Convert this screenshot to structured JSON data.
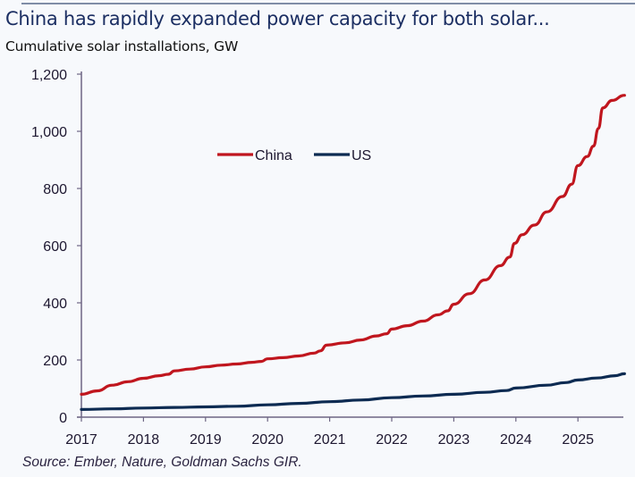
{
  "header": {
    "title": "China has rapidly expanded power capacity for both solar...",
    "subtitle": "Cumulative solar installations, GW"
  },
  "footer": {
    "source": "Source: Ember, Nature, Goldman Sachs GIR."
  },
  "chart_data": {
    "type": "line",
    "title": "China has rapidly expanded power capacity for both solar...",
    "subtitle": "Cumulative solar installations, GW",
    "xlabel": "",
    "ylabel": "Cumulative solar installations, GW",
    "xlim": [
      2017,
      2025.75
    ],
    "ylim": [
      0,
      1200
    ],
    "x_ticks": [
      2017,
      2018,
      2019,
      2020,
      2021,
      2022,
      2023,
      2024,
      2025
    ],
    "x_tick_labels": [
      "2017",
      "2018",
      "2019",
      "2020",
      "2021",
      "2022",
      "2023",
      "2024",
      "2025"
    ],
    "y_ticks": [
      0,
      200,
      400,
      600,
      800,
      1000,
      1200
    ],
    "y_tick_labels": [
      "0",
      "200",
      "400",
      "600",
      "800",
      "1,000",
      "1,200"
    ],
    "grid": false,
    "legend": {
      "placement": "top-center",
      "entries": [
        "China",
        "US"
      ]
    },
    "series": [
      {
        "name": "China",
        "color": "#c0161e",
        "points": [
          [
            2017.0,
            80
          ],
          [
            2017.25,
            92
          ],
          [
            2017.5,
            112
          ],
          [
            2017.75,
            124
          ],
          [
            2018.0,
            136
          ],
          [
            2018.25,
            145
          ],
          [
            2018.4,
            150
          ],
          [
            2018.5,
            162
          ],
          [
            2018.75,
            168
          ],
          [
            2019.0,
            176
          ],
          [
            2019.25,
            182
          ],
          [
            2019.5,
            186
          ],
          [
            2019.75,
            192
          ],
          [
            2019.9,
            195
          ],
          [
            2020.0,
            204
          ],
          [
            2020.25,
            208
          ],
          [
            2020.5,
            214
          ],
          [
            2020.75,
            224
          ],
          [
            2020.85,
            232
          ],
          [
            2020.95,
            252
          ],
          [
            2021.25,
            260
          ],
          [
            2021.5,
            270
          ],
          [
            2021.75,
            284
          ],
          [
            2021.92,
            292
          ],
          [
            2022.0,
            308
          ],
          [
            2022.25,
            320
          ],
          [
            2022.5,
            336
          ],
          [
            2022.75,
            358
          ],
          [
            2022.9,
            372
          ],
          [
            2023.0,
            395
          ],
          [
            2023.25,
            432
          ],
          [
            2023.5,
            480
          ],
          [
            2023.75,
            530
          ],
          [
            2023.9,
            560
          ],
          [
            2023.98,
            608
          ],
          [
            2024.1,
            638
          ],
          [
            2024.3,
            672
          ],
          [
            2024.5,
            718
          ],
          [
            2024.75,
            772
          ],
          [
            2024.9,
            815
          ],
          [
            2025.0,
            880
          ],
          [
            2025.15,
            912
          ],
          [
            2025.25,
            948
          ],
          [
            2025.33,
            1010
          ],
          [
            2025.4,
            1082
          ],
          [
            2025.55,
            1108
          ],
          [
            2025.75,
            1126
          ]
        ]
      },
      {
        "name": "US",
        "color": "#0d2b52",
        "points": [
          [
            2017.0,
            27
          ],
          [
            2017.5,
            29
          ],
          [
            2018.0,
            32
          ],
          [
            2018.5,
            34
          ],
          [
            2019.0,
            36
          ],
          [
            2019.5,
            38
          ],
          [
            2020.0,
            43
          ],
          [
            2020.5,
            48
          ],
          [
            2021.0,
            54
          ],
          [
            2021.5,
            60
          ],
          [
            2022.0,
            68
          ],
          [
            2022.5,
            74
          ],
          [
            2023.0,
            80
          ],
          [
            2023.5,
            87
          ],
          [
            2023.85,
            93
          ],
          [
            2024.0,
            102
          ],
          [
            2024.5,
            112
          ],
          [
            2024.8,
            121
          ],
          [
            2025.0,
            130
          ],
          [
            2025.3,
            137
          ],
          [
            2025.6,
            145
          ],
          [
            2025.75,
            152
          ]
        ]
      }
    ]
  }
}
